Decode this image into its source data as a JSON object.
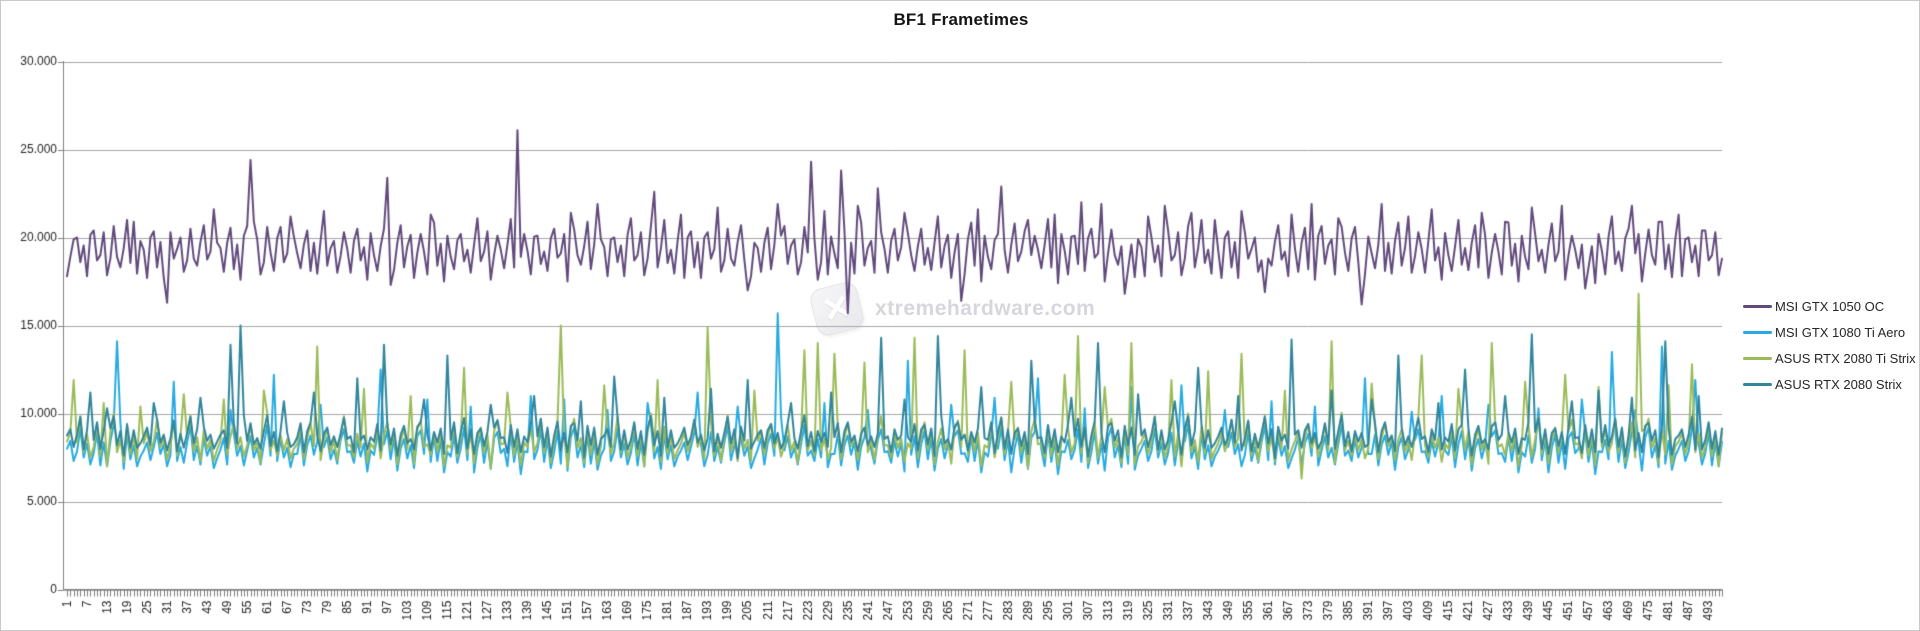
{
  "chart_data": {
    "type": "line",
    "title": "BF1 Frametimes",
    "watermark": "xtremehardware.com",
    "xlabel": "",
    "ylabel": "",
    "ylim": [
      0,
      30
    ],
    "grid": "horizontal",
    "legend_position": "right",
    "axis_color": "#808080",
    "gridline_color": "#a6a6a6",
    "tick_label_color": "#262626",
    "n_points": 497,
    "x_label_every": 6,
    "y_ticks": [
      {
        "value": 30,
        "label": "30.000"
      },
      {
        "value": 25,
        "label": "25.000"
      },
      {
        "value": 20,
        "label": "20.000"
      },
      {
        "value": 15,
        "label": "15.000"
      },
      {
        "value": 10,
        "label": "10.000"
      },
      {
        "value": 5,
        "label": "5.000"
      },
      {
        "value": 0,
        "label": "0"
      }
    ],
    "x_tick_labels": [
      "1",
      "7",
      "13",
      "19",
      "25",
      "31",
      "37",
      "43",
      "49",
      "55",
      "61",
      "67",
      "73",
      "79",
      "85",
      "91",
      "97",
      "103",
      "109",
      "115",
      "121",
      "127",
      "133",
      "139",
      "145",
      "151",
      "157",
      "163",
      "169",
      "175",
      "181",
      "187",
      "193",
      "199",
      "205",
      "211",
      "217",
      "223",
      "229",
      "235",
      "241",
      "247",
      "253",
      "259",
      "265",
      "271",
      "277",
      "283",
      "289",
      "295",
      "301",
      "307",
      "313",
      "319",
      "325",
      "331",
      "337",
      "343",
      "349",
      "355",
      "361",
      "367",
      "373",
      "379",
      "385",
      "391",
      "397",
      "403",
      "409",
      "415",
      "421",
      "427",
      "433",
      "439",
      "445",
      "451",
      "457",
      "463",
      "469",
      "475",
      "481",
      "487",
      "493"
    ],
    "series": [
      {
        "name": "MSI GTX 1050 OC",
        "color": "#604a7b",
        "base_pattern": [
          19.2,
          18.0,
          19.8,
          20.3,
          18.4,
          19.5,
          17.9,
          19.9,
          20.6,
          18.6,
          19.3,
          20.1,
          17.8,
          18.9,
          20.4,
          19.1,
          18.2,
          19.7,
          20.8,
          18.5,
          19.4,
          17.7,
          20.0
        ],
        "jitter_pattern": [
          0.25,
          -0.2,
          0.1,
          -0.3,
          0.2,
          0.05,
          -0.1
        ],
        "spikes": {
          "1": 17.8,
          "2": 18.9,
          "21": 20.9,
          "31": 16.3,
          "45": 21.6,
          "56": 24.4,
          "57": 20.9,
          "68": 21.2,
          "78": 21.5,
          "97": 23.4,
          "98": 17.3,
          "110": 21.3,
          "124": 21.1,
          "136": 26.1,
          "137": 18.9,
          "152": 21.4,
          "160": 21.9,
          "170": 21.1,
          "177": 22.6,
          "185": 21.3,
          "196": 21.7,
          "205": 17.0,
          "214": 21.9,
          "224": 24.3,
          "226": 17.6,
          "228": 21.5,
          "233": 23.8,
          "235": 15.7,
          "238": 21.8,
          "244": 22.8,
          "252": 21.4,
          "262": 21.2,
          "269": 16.4,
          "274": 21.6,
          "281": 22.9,
          "289": 21.0,
          "297": 21.3,
          "305": 22.0,
          "311": 21.9,
          "318": 16.8,
          "325": 21.2,
          "330": 21.8,
          "338": 21.4,
          "345": 21.0,
          "353": 21.5,
          "360": 16.9,
          "368": 21.3,
          "374": 21.9,
          "382": 21.1,
          "389": 16.2,
          "395": 21.9,
          "403": 21.2,
          "410": 21.6,
          "418": 21.0,
          "425": 21.4,
          "432": 20.9,
          "440": 21.7,
          "449": 21.8,
          "456": 17.1,
          "464": 21.2,
          "470": 21.8,
          "478": 20.9,
          "484": 21.3,
          "491": 20.4
        }
      },
      {
        "name": "MSI GTX 1080 Ti Aero",
        "color": "#27aae1",
        "base_pattern": [
          7.8,
          8.6,
          7.2,
          8.1,
          9.0,
          7.5,
          8.4,
          6.9,
          7.9,
          8.8,
          7.3,
          8.2,
          7.0,
          8.5,
          9.2,
          7.6,
          8.0,
          7.1,
          8.7,
          7.4,
          8.3,
          6.8,
          7.7
        ],
        "jitter_pattern": [
          0.2,
          -0.15,
          0.1,
          -0.25,
          0.15,
          0,
          -0.1
        ],
        "spikes": {
          "16": 14.1,
          "17": 9.5,
          "33": 11.8,
          "50": 10.2,
          "63": 12.2,
          "77": 10.5,
          "95": 12.5,
          "109": 10.8,
          "122": 10.4,
          "140": 11.0,
          "150": 10.8,
          "163": 10.2,
          "175": 10.6,
          "190": 11.2,
          "202": 10.4,
          "214": 15.7,
          "215": 9.8,
          "228": 10.6,
          "241": 10.2,
          "253": 13.0,
          "266": 10.5,
          "279": 10.9,
          "292": 12.0,
          "306": 10.3,
          "320": 11.5,
          "335": 11.6,
          "348": 10.2,
          "362": 10.7,
          "375": 10.4,
          "390": 12.0,
          "404": 10.1,
          "413": 11.0,
          "427": 10.5,
          "442": 10.3,
          "455": 10.8,
          "464": 13.5,
          "471": 10.2,
          "479": 13.8,
          "489": 11.9
        }
      },
      {
        "name": "ASUS RTX 2080 Ti Strix",
        "color": "#9bbb59",
        "base_pattern": [
          8.2,
          9.1,
          7.6,
          8.5,
          9.6,
          7.9,
          8.8,
          7.3,
          8.3,
          9.3,
          7.7,
          8.6,
          7.1,
          8.9,
          9.8,
          8.0,
          8.4,
          7.4,
          9.0,
          7.8,
          8.7,
          7.2,
          8.1
        ],
        "jitter_pattern": [
          0.2,
          -0.2,
          0.1,
          -0.15,
          0.25,
          -0.1,
          0.05
        ],
        "spikes": {
          "3": 11.9,
          "12": 10.6,
          "23": 10.4,
          "36": 11.1,
          "48": 10.8,
          "60": 11.3,
          "76": 13.8,
          "90": 11.4,
          "104": 11.0,
          "120": 12.6,
          "133": 11.2,
          "149": 15.0,
          "162": 11.6,
          "178": 11.9,
          "193": 14.9,
          "207": 11.3,
          "222": 13.6,
          "226": 14.0,
          "231": 13.4,
          "240": 12.9,
          "255": 14.3,
          "270": 13.6,
          "284": 11.8,
          "300": 12.2,
          "304": 14.4,
          "312": 11.5,
          "320": 14.0,
          "332": 11.9,
          "343": 12.4,
          "353": 13.4,
          "366": 11.3,
          "371": 6.3,
          "380": 14.1,
          "392": 11.7,
          "407": 13.3,
          "418": 11.4,
          "428": 14.0,
          "438": 11.8,
          "450": 12.2,
          "460": 11.5,
          "472": 16.8,
          "473": 9.0,
          "481": 11.6,
          "488": 12.8
        }
      },
      {
        "name": "ASUS RTX 2080 Strix",
        "color": "#31859c",
        "base_pattern": [
          8.6,
          9.3,
          8.0,
          8.9,
          9.6,
          8.2,
          9.0,
          7.8,
          8.7,
          9.4,
          8.1,
          8.8,
          7.9,
          9.1,
          9.7,
          8.4,
          8.9,
          7.7,
          9.2,
          8.3,
          9.0,
          7.9,
          8.5
        ],
        "jitter_pattern": [
          0.15,
          -0.2,
          0.1,
          -0.1,
          0.2,
          -0.25,
          0.05
        ],
        "spikes": {
          "8": 11.2,
          "13": 10.3,
          "27": 10.6,
          "41": 10.9,
          "50": 13.9,
          "53": 15.0,
          "54": 9.9,
          "66": 10.7,
          "75": 11.2,
          "88": 12.0,
          "96": 13.9,
          "108": 10.8,
          "115": 13.3,
          "128": 10.5,
          "141": 11.0,
          "155": 10.7,
          "165": 12.1,
          "180": 10.9,
          "194": 11.4,
          "205": 11.9,
          "218": 10.6,
          "230": 11.2,
          "245": 14.3,
          "252": 10.8,
          "262": 14.4,
          "263": 9.9,
          "275": 11.5,
          "290": 13.0,
          "302": 10.9,
          "310": 14.0,
          "322": 11.1,
          "333": 10.7,
          "340": 12.6,
          "352": 11.0,
          "368": 14.2,
          "380": 11.3,
          "392": 10.8,
          "400": 13.3,
          "412": 10.6,
          "420": 12.5,
          "432": 11.0,
          "440": 14.5,
          "452": 10.7,
          "460": 11.3,
          "470": 10.9,
          "480": 14.1,
          "490": 11.0
        }
      }
    ]
  }
}
